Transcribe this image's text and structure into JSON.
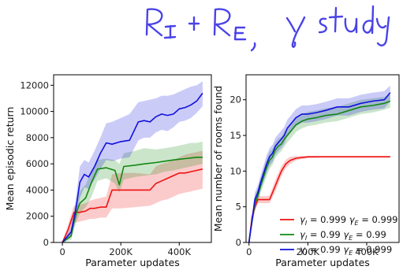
{
  "annotation": {
    "text": "R_I + R_E, γ study",
    "color": "#4a43e8"
  },
  "colors": {
    "red": "#ee1111",
    "green": "#118811",
    "blue": "#1111dd"
  },
  "legend": {
    "entries": [
      {
        "color": "red",
        "parts": [
          [
            "γ",
            "I",
            " = 0.999 "
          ],
          [
            "γ",
            "E",
            " = 0.999"
          ]
        ]
      },
      {
        "color": "green",
        "parts": [
          [
            "γ",
            "I",
            " = 0.99 "
          ],
          [
            "γ",
            "E",
            " = 0.99"
          ]
        ]
      },
      {
        "color": "blue",
        "parts": [
          [
            "γ",
            "I",
            " = 0.99 "
          ],
          [
            "γ",
            "E",
            " = 0.999"
          ]
        ]
      }
    ]
  },
  "chart_data": [
    {
      "type": "line",
      "xlabel": "Parameter updates",
      "ylabel": "Mean episodic return",
      "xlim": [
        -30000,
        510000
      ],
      "ylim": [
        0,
        12800
      ],
      "xticks": [
        0,
        200000,
        400000
      ],
      "xtick_labels": [
        "0",
        "200K",
        "400K"
      ],
      "yticks": [
        0,
        2000,
        4000,
        6000,
        8000,
        10000,
        12000
      ],
      "ytick_labels": [
        "0",
        "2000",
        "4000",
        "6000",
        "8000",
        "10000",
        "12000"
      ],
      "series": [
        {
          "color": "red",
          "x": [
            0,
            20000,
            35000,
            40000,
            60000,
            80000,
            95000,
            110000,
            130000,
            150000,
            170000,
            200000,
            250000,
            300000,
            320000,
            340000,
            360000,
            380000,
            400000,
            420000,
            440000,
            460000,
            480000
          ],
          "y": [
            0,
            1000,
            2000,
            2300,
            2300,
            2400,
            2600,
            2600,
            2700,
            2700,
            4000,
            4000,
            4000,
            4000,
            4500,
            4700,
            4900,
            5100,
            5300,
            5300,
            5400,
            5500,
            5600
          ],
          "lower": [
            0,
            600,
            1400,
            1500,
            1600,
            1700,
            1800,
            1800,
            1900,
            1900,
            2600,
            2600,
            2700,
            2800,
            3000,
            3200,
            3300,
            3500,
            3700,
            3800,
            3900,
            4000,
            4100
          ],
          "upper": [
            0,
            1400,
            2500,
            2800,
            2900,
            3000,
            3200,
            3300,
            3400,
            3500,
            5200,
            5300,
            5300,
            5200,
            5800,
            6000,
            6100,
            6300,
            6500,
            6700,
            6800,
            6900,
            7000
          ]
        },
        {
          "color": "green",
          "x": [
            0,
            30000,
            40000,
            50000,
            60000,
            70000,
            80000,
            100000,
            120000,
            150000,
            180000,
            195000,
            210000,
            250000,
            280000,
            320000,
            350000,
            380000,
            400000,
            420000,
            440000,
            460000,
            480000
          ],
          "y": [
            0,
            500,
            1600,
            2400,
            3000,
            3200,
            3400,
            4600,
            5600,
            5700,
            5500,
            4400,
            5800,
            5900,
            6000,
            6100,
            6200,
            6300,
            6350,
            6400,
            6450,
            6500,
            6500
          ],
          "lower": [
            0,
            200,
            1000,
            1700,
            2200,
            2500,
            2700,
            3500,
            4700,
            4900,
            4500,
            3800,
            4800,
            5000,
            5100,
            5200,
            5400,
            5500,
            5600,
            5700,
            5800,
            5900,
            6000
          ],
          "upper": [
            0,
            900,
            2300,
            3300,
            3900,
            4200,
            4400,
            5500,
            6300,
            6400,
            6300,
            6000,
            6800,
            7000,
            7200,
            7100,
            7200,
            7300,
            7400,
            7500,
            7600,
            7600,
            7700
          ]
        },
        {
          "color": "blue",
          "x": [
            0,
            30000,
            45000,
            60000,
            75000,
            90000,
            110000,
            130000,
            150000,
            170000,
            200000,
            230000,
            260000,
            280000,
            300000,
            320000,
            340000,
            360000,
            380000,
            400000,
            420000,
            440000,
            460000,
            480000
          ],
          "y": [
            0,
            800,
            2400,
            4600,
            5200,
            5000,
            5800,
            6800,
            7600,
            7500,
            7700,
            7800,
            9200,
            9300,
            9200,
            9600,
            9800,
            9700,
            9800,
            10200,
            10300,
            10500,
            10800,
            11400
          ],
          "lower": [
            0,
            400,
            1600,
            3400,
            4200,
            4100,
            4800,
            5600,
            6300,
            6200,
            6400,
            6500,
            7800,
            8000,
            8000,
            8400,
            8600,
            8500,
            8800,
            9200,
            9300,
            9500,
            9900,
            10400
          ],
          "upper": [
            0,
            1200,
            3200,
            5800,
            6300,
            6100,
            7000,
            8000,
            9100,
            9200,
            9500,
            9800,
            10700,
            10800,
            10900,
            11000,
            11200,
            11200,
            11300,
            11500,
            11700,
            11900,
            12000,
            12300
          ]
        }
      ]
    },
    {
      "type": "line",
      "xlabel": "Parameter updates",
      "ylabel": "Mean number of rooms found",
      "xlim": [
        -10000,
        510000
      ],
      "ylim": [
        0,
        23.5
      ],
      "xticks": [
        0,
        200000,
        400000
      ],
      "xtick_labels": [
        "0",
        "200K",
        "400K"
      ],
      "yticks": [
        0,
        5,
        10,
        15,
        20
      ],
      "ytick_labels": [
        "0",
        "5",
        "10",
        "15",
        "20"
      ],
      "legend_position": "lower-right",
      "series": [
        {
          "color": "red",
          "x": [
            0,
            10000,
            20000,
            30000,
            50000,
            60000,
            70000,
            80000,
            90000,
            100000,
            110000,
            125000,
            140000,
            160000,
            180000,
            200000,
            250000,
            300000,
            350000,
            400000,
            480000
          ],
          "y": [
            0,
            3.5,
            5.0,
            6.0,
            6.0,
            6.0,
            6.0,
            7.0,
            8.0,
            9.0,
            10.0,
            11.0,
            11.5,
            11.8,
            11.9,
            12.0,
            12.0,
            12.0,
            12.0,
            12.0,
            12.0
          ],
          "lower": [
            0,
            2.8,
            4.3,
            5.5,
            5.5,
            5.5,
            5.5,
            6.3,
            7.2,
            8.2,
            9.3,
            10.4,
            11.0,
            11.5,
            11.7,
            11.8,
            11.9,
            11.9,
            11.9,
            11.9,
            11.9
          ],
          "upper": [
            0,
            4.2,
            5.7,
            6.5,
            6.5,
            6.5,
            6.6,
            7.7,
            8.8,
            9.8,
            10.7,
            11.6,
            12.0,
            12.1,
            12.1,
            12.1,
            12.1,
            12.1,
            12.1,
            12.1,
            12.1
          ]
        },
        {
          "color": "green",
          "x": [
            0,
            10000,
            20000,
            30000,
            40000,
            60000,
            70000,
            80000,
            90000,
            100000,
            110000,
            120000,
            130000,
            140000,
            160000,
            180000,
            200000,
            230000,
            260000,
            300000,
            340000,
            380000,
            420000,
            460000,
            480000
          ],
          "y": [
            0,
            3.0,
            5.5,
            6.5,
            8.0,
            10.5,
            11.5,
            12.0,
            13.0,
            13.5,
            13.8,
            14.5,
            15.0,
            15.5,
            16.5,
            17.0,
            17.3,
            17.5,
            17.8,
            18.0,
            18.5,
            19.0,
            19.2,
            19.5,
            19.8
          ],
          "lower": [
            0,
            2.2,
            4.5,
            5.5,
            7.0,
            9.3,
            10.3,
            10.9,
            11.9,
            12.4,
            12.8,
            13.4,
            14.0,
            14.5,
            15.5,
            16.0,
            16.3,
            16.5,
            16.8,
            17.0,
            17.5,
            18.0,
            18.2,
            18.6,
            18.9
          ],
          "upper": [
            0,
            3.8,
            6.5,
            7.5,
            9.0,
            11.7,
            12.7,
            13.1,
            14.1,
            14.6,
            14.8,
            15.6,
            16.0,
            16.5,
            17.5,
            18.0,
            18.3,
            18.5,
            18.8,
            19.0,
            19.5,
            20.0,
            20.2,
            20.4,
            20.7
          ]
        },
        {
          "color": "blue",
          "x": [
            0,
            10000,
            20000,
            30000,
            40000,
            60000,
            70000,
            80000,
            90000,
            100000,
            110000,
            120000,
            130000,
            140000,
            160000,
            180000,
            200000,
            230000,
            260000,
            300000,
            340000,
            380000,
            420000,
            460000,
            480000
          ],
          "y": [
            0,
            3.0,
            6.0,
            7.0,
            8.5,
            11.0,
            12.0,
            12.5,
            13.5,
            14.0,
            14.5,
            15.0,
            16.0,
            16.5,
            17.5,
            18.0,
            18.0,
            18.2,
            18.5,
            19.0,
            19.0,
            19.5,
            19.8,
            20.0,
            21.0
          ],
          "lower": [
            0,
            2.2,
            5.0,
            6.0,
            7.5,
            9.8,
            10.8,
            11.3,
            12.3,
            12.8,
            13.3,
            13.8,
            14.8,
            15.3,
            16.3,
            16.8,
            16.8,
            17.0,
            17.3,
            17.8,
            17.8,
            18.3,
            18.6,
            18.8,
            19.8
          ],
          "upper": [
            0,
            3.8,
            7.0,
            8.0,
            9.5,
            12.2,
            13.2,
            13.7,
            14.7,
            15.2,
            15.7,
            16.2,
            17.2,
            17.7,
            18.7,
            19.2,
            19.2,
            19.4,
            19.7,
            20.2,
            20.2,
            20.7,
            21.0,
            21.2,
            22.0
          ]
        }
      ]
    }
  ]
}
